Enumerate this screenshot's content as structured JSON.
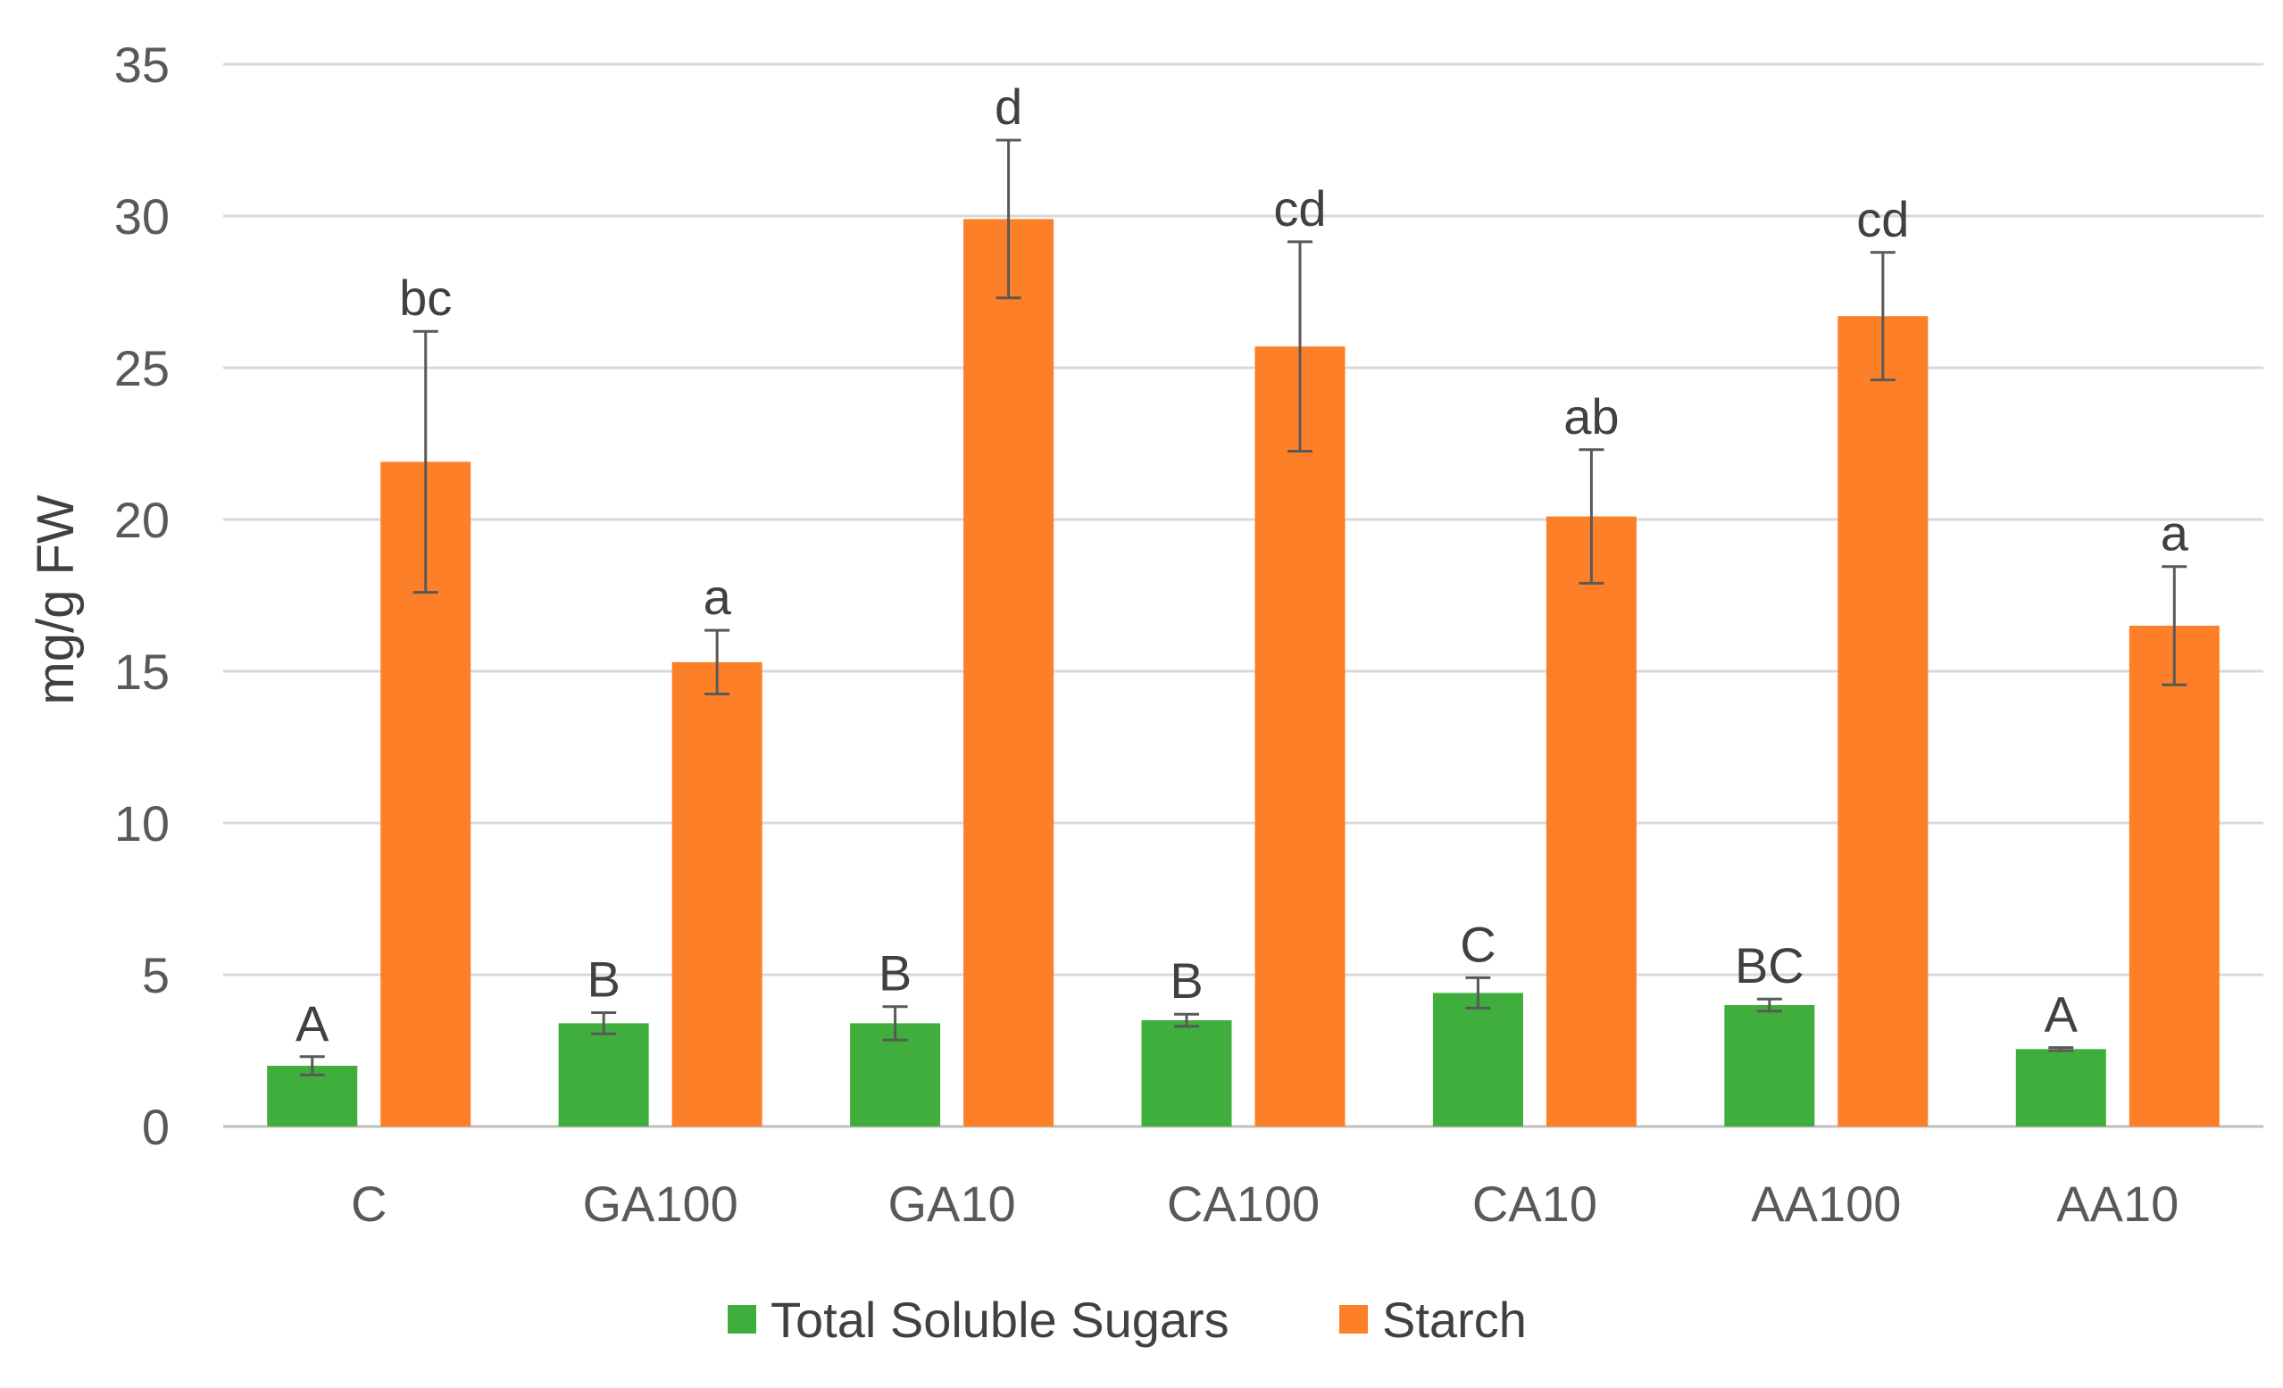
{
  "chart_data": {
    "type": "bar",
    "title": "",
    "xlabel": "",
    "ylabel": "mg/g FW",
    "ylim": [
      0,
      35
    ],
    "yticks": [
      0,
      5,
      10,
      15,
      20,
      25,
      30,
      35
    ],
    "grid": true,
    "legend_position": "bottom",
    "categories": [
      "C",
      "GA100",
      "GA10",
      "CA100",
      "CA10",
      "AA100",
      "AA10"
    ],
    "series": [
      {
        "name": "Total Soluble Sugars",
        "color": "#3fae3c",
        "values": [
          2.0,
          3.4,
          3.4,
          3.5,
          4.4,
          4.0,
          2.55
        ],
        "errors": [
          0.3,
          0.35,
          0.55,
          0.2,
          0.5,
          0.2,
          0.05
        ],
        "letters": [
          "A",
          "B",
          "B",
          "B",
          "C",
          "BC",
          "A"
        ]
      },
      {
        "name": "Starch",
        "color": "#fd7f28",
        "values": [
          21.9,
          15.3,
          29.9,
          25.7,
          20.1,
          26.7,
          16.5
        ],
        "errors": [
          4.3,
          1.05,
          2.6,
          3.45,
          2.2,
          2.1,
          1.95
        ],
        "letters": [
          "bc",
          "a",
          "d",
          "cd",
          "ab",
          "cd",
          "a"
        ]
      }
    ]
  }
}
